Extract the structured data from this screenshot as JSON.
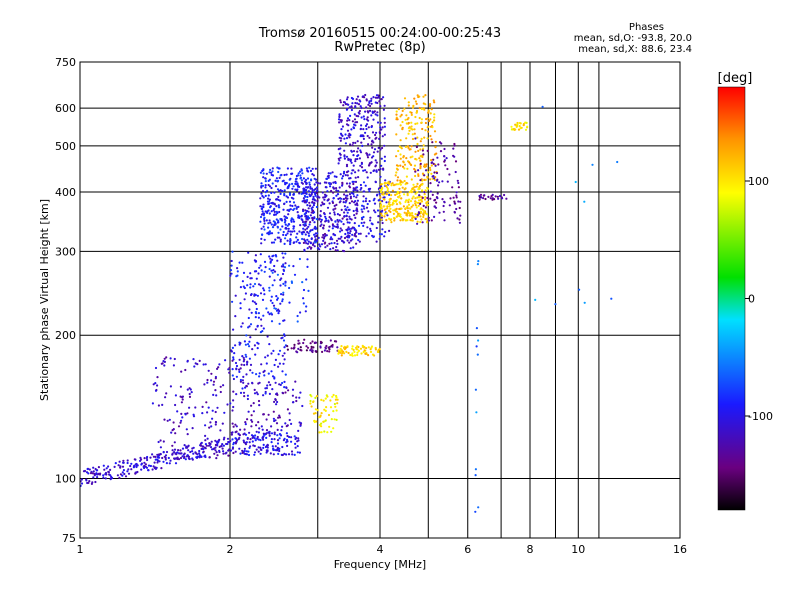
{
  "chart_data": {
    "type": "scatter",
    "title": "Tromsø 20160515 00:24:00-00:25:43",
    "subtitle": "RwPretec (8p)",
    "xlabel": "Frequency [MHz]",
    "ylabel": "Stationary phase Virtual Height [km]",
    "x_scale": "log",
    "y_scale": "log",
    "xlim": [
      1,
      16
    ],
    "ylim": [
      75,
      750
    ],
    "x_ticks": [
      "1",
      "2",
      "4",
      "6",
      "8",
      "10",
      "16"
    ],
    "x_tick_values": [
      1,
      2,
      4,
      6,
      8,
      10,
      16
    ],
    "x_minor_gridlines": [
      3,
      5,
      7,
      9,
      11
    ],
    "y_ticks": [
      "75",
      "100",
      "200",
      "300",
      "400",
      "500",
      "600",
      "750"
    ],
    "y_tick_values": [
      75,
      100,
      200,
      300,
      400,
      500,
      600,
      750
    ],
    "grid": true,
    "phases": {
      "label": "Phases",
      "o_stats": "mean, sd,O: -93.8, 20.0",
      "x_stats": "mean, sd,X:  88.6, 23.4"
    },
    "colorbar": {
      "label": "[deg]",
      "range": [
        -180,
        180
      ],
      "ticks": [
        "100",
        "0",
        "-100"
      ],
      "tick_values": [
        100,
        0,
        -100
      ],
      "colormap": "rainbow: black-purple-blue-cyan-green-yellow-orange-red"
    },
    "clusters": [
      {
        "x": [
          1.0,
          2.0
        ],
        "y": [
          100,
          118
        ],
        "phase": -110,
        "n": 260,
        "shape": "rising"
      },
      {
        "x": [
          1.4,
          2.2
        ],
        "y": [
          110,
          180
        ],
        "phase": -115,
        "n": 200,
        "shape": "box"
      },
      {
        "x": [
          2.0,
          2.8
        ],
        "y": [
          112,
          125
        ],
        "phase": -100,
        "n": 150,
        "shape": "box"
      },
      {
        "x": [
          2.0,
          2.6
        ],
        "y": [
          150,
          300
        ],
        "phase": -95,
        "n": 220,
        "shape": "box"
      },
      {
        "x": [
          2.2,
          2.8
        ],
        "y": [
          125,
          160
        ],
        "phase": -120,
        "n": 80,
        "shape": "box"
      },
      {
        "x": [
          2.2,
          2.9
        ],
        "y": [
          210,
          290
        ],
        "phase": -80,
        "n": 60,
        "shape": "box"
      },
      {
        "x": [
          2.3,
          3.0
        ],
        "y": [
          310,
          450
        ],
        "phase": -90,
        "n": 420,
        "shape": "box"
      },
      {
        "x": [
          2.8,
          3.6
        ],
        "y": [
          300,
          420
        ],
        "phase": -115,
        "n": 260,
        "shape": "box"
      },
      {
        "x": [
          3.3,
          4.1
        ],
        "y": [
          440,
          640
        ],
        "phase": -110,
        "n": 260,
        "shape": "box"
      },
      {
        "x": [
          3.1,
          4.2
        ],
        "y": [
          310,
          440
        ],
        "phase": -100,
        "n": 200,
        "shape": "box"
      },
      {
        "x": [
          2.6,
          3.3
        ],
        "y": [
          184,
          196
        ],
        "phase": -140,
        "n": 60,
        "shape": "box"
      },
      {
        "x": [
          3.3,
          4.0
        ],
        "y": [
          181,
          190
        ],
        "phase": 110,
        "n": 70,
        "shape": "box"
      },
      {
        "x": [
          2.9,
          3.3
        ],
        "y": [
          125,
          150
        ],
        "phase": 95,
        "n": 60,
        "shape": "box"
      },
      {
        "x": [
          4.0,
          5.0
        ],
        "y": [
          345,
          420
        ],
        "phase": 110,
        "n": 260,
        "shape": "box"
      },
      {
        "x": [
          4.3,
          5.2
        ],
        "y": [
          420,
          640
        ],
        "phase": 120,
        "n": 200,
        "shape": "box"
      },
      {
        "x": [
          4.7,
          5.8
        ],
        "y": [
          340,
          520
        ],
        "phase": -130,
        "n": 110,
        "shape": "box"
      },
      {
        "x": [
          6.3,
          7.2
        ],
        "y": [
          385,
          395
        ],
        "phase": -130,
        "n": 25,
        "shape": "box"
      },
      {
        "x": [
          7.3,
          7.9
        ],
        "y": [
          540,
          560
        ],
        "phase": 100,
        "n": 25,
        "shape": "box"
      },
      {
        "x": [
          6.2,
          6.3
        ],
        "y": [
          85,
          300
        ],
        "phase": -60,
        "n": 12,
        "shape": "box"
      },
      {
        "x": [
          8.0,
          12.0
        ],
        "y": [
          180,
          620
        ],
        "phase": -50,
        "n": 10,
        "shape": "box"
      }
    ]
  }
}
